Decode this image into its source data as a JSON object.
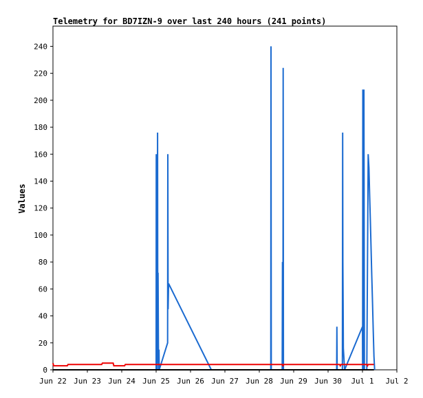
{
  "chart_data": {
    "type": "line",
    "title": "Telemetry for BD7IZN-9 over last 240 hours (241 points)",
    "xlabel": "",
    "ylabel": "Values",
    "x_ticks": [
      "Jun 22",
      "Jun 23",
      "Jun 24",
      "Jun 25",
      "Jun 26",
      "Jun 27",
      "Jun 28",
      "Jun 29",
      "Jun 30",
      "Jul 1",
      "Jul 2"
    ],
    "y_ticks": [
      0,
      20,
      40,
      60,
      80,
      100,
      120,
      140,
      160,
      180,
      200,
      220,
      240
    ],
    "xlim": [
      "Jun 22 00:00",
      "Jul 2 00:00"
    ],
    "ylim": [
      0,
      255
    ],
    "grid": false,
    "legend": "none",
    "colors": {
      "blue": "#1a6ad0",
      "red": "#ee0000"
    },
    "series": [
      {
        "color": "#1a6ad0",
        "points": [
          [
            "Jun 25 00:00",
            0
          ],
          [
            "Jun 25 00:05",
            160
          ],
          [
            "Jun 25 00:10",
            5
          ],
          [
            "Jun 25 00:15",
            112
          ],
          [
            "Jun 25 00:20",
            4
          ],
          [
            "Jun 25 00:25",
            80
          ],
          [
            "Jun 25 00:35",
            0
          ],
          [
            "Jun 25 00:45",
            60
          ],
          [
            "Jun 25 01:00",
            176
          ],
          [
            "Jun 25 01:10",
            5
          ],
          [
            "Jun 25 01:20",
            72
          ],
          [
            "Jun 25 01:40",
            0
          ],
          [
            "Jun 25 02:00",
            15
          ],
          [
            "Jun 25 02:10",
            0
          ],
          [
            "Jun 25 08:00",
            20
          ],
          [
            "Jun 25 08:10",
            160
          ],
          [
            "Jun 25 08:20",
            45
          ],
          [
            "Jun 25 08:40",
            64
          ],
          [
            "Jun 26 14:30",
            0
          ],
          [
            "Jun 28 08:00",
            0
          ],
          [
            "Jun 28 08:10",
            240
          ],
          [
            "Jun 28 08:20",
            0
          ],
          [
            "Jun 28 16:00",
            0
          ],
          [
            "Jun 28 16:10",
            80
          ],
          [
            "Jun 28 16:30",
            0
          ],
          [
            "Jun 28 16:40",
            224
          ],
          [
            "Jun 28 16:50",
            0
          ],
          [
            "Jun 30 06:00",
            0
          ],
          [
            "Jun 30 06:10",
            32
          ],
          [
            "Jun 30 06:20",
            0
          ],
          [
            "Jun 30 10:00",
            0
          ],
          [
            "Jun 30 10:10",
            176
          ],
          [
            "Jun 30 10:20",
            80
          ],
          [
            "Jun 30 10:30",
            48
          ],
          [
            "Jun 30 10:40",
            16
          ],
          [
            "Jun 30 11:30",
            0
          ],
          [
            "Jul 1 00:00",
            32
          ],
          [
            "Jul 1 00:05",
            0
          ],
          [
            "Jul 1 00:15",
            208
          ],
          [
            "Jul 1 00:30",
            0
          ],
          [
            "Jul 1 01:00",
            208
          ],
          [
            "Jul 1 01:20",
            0
          ],
          [
            "Jul 1 03:00",
            0
          ],
          [
            "Jul 1 03:30",
            80
          ],
          [
            "Jul 1 04:00",
            160
          ],
          [
            "Jul 1 04:30",
            150
          ],
          [
            "Jul 1 05:00",
            130
          ],
          [
            "Jul 1 05:30",
            110
          ],
          [
            "Jul 1 06:00",
            90
          ],
          [
            "Jul 1 06:30",
            70
          ],
          [
            "Jul 1 07:00",
            50
          ],
          [
            "Jul 1 07:30",
            30
          ],
          [
            "Jul 1 08:00",
            10
          ],
          [
            "Jul 1 08:30",
            0
          ]
        ]
      },
      {
        "color": "#ee0000",
        "points": [
          [
            "Jun 22 00:00",
            5
          ],
          [
            "Jun 22 00:30",
            3
          ],
          [
            "Jun 22 10:00",
            3
          ],
          [
            "Jun 22 10:30",
            4
          ],
          [
            "Jun 23 10:00",
            4
          ],
          [
            "Jun 23 10:30",
            5
          ],
          [
            "Jun 23 18:00",
            5
          ],
          [
            "Jun 23 18:30",
            3
          ],
          [
            "Jun 24 02:00",
            3
          ],
          [
            "Jun 24 02:30",
            4
          ],
          [
            "Jun 28 16:00",
            4
          ],
          [
            "Jun 28 16:30",
            3
          ],
          [
            "Jun 28 17:00",
            4
          ],
          [
            "Jun 30 08:00",
            4
          ],
          [
            "Jun 30 08:30",
            3
          ],
          [
            "Jun 30 09:00",
            4
          ],
          [
            "Jul 1 03:00",
            4
          ],
          [
            "Jul 1 03:30",
            3
          ],
          [
            "Jul 1 04:00",
            4
          ],
          [
            "Jul 1 08:00",
            4
          ]
        ]
      },
      {
        "color": "#000000",
        "points": [
          [
            "Jun 22 00:00",
            0
          ],
          [
            "Jul 1 08:00",
            0
          ]
        ]
      }
    ]
  }
}
